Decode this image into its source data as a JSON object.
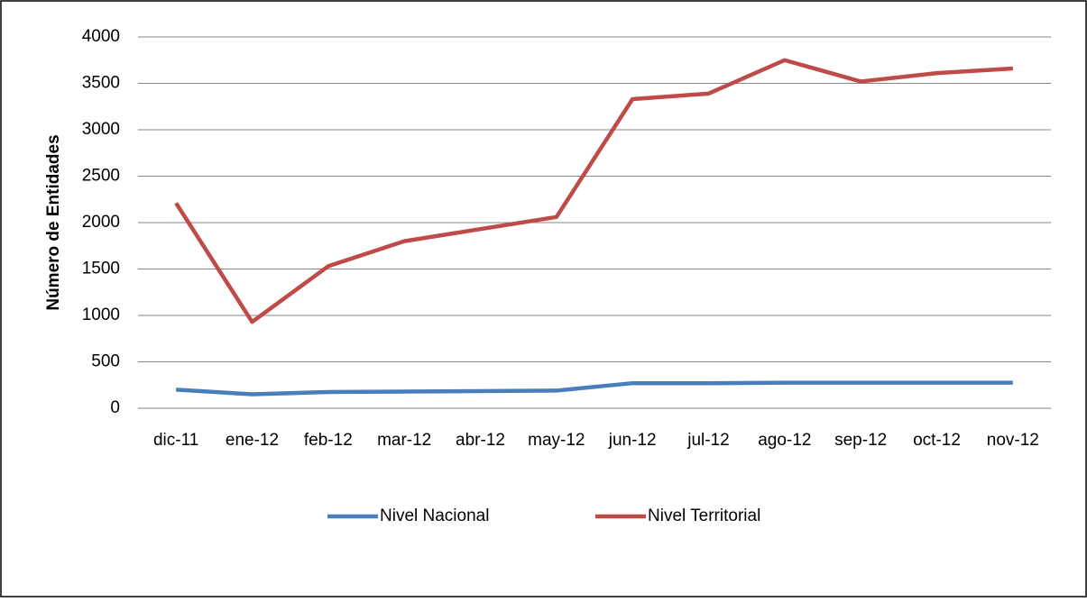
{
  "chart_data": {
    "type": "line",
    "y_label": "Número de Entidades",
    "categories": [
      "dic-11",
      "ene-12",
      "feb-12",
      "mar-12",
      "abr-12",
      "may-12",
      "jun-12",
      "jul-12",
      "ago-12",
      "sep-12",
      "oct-12",
      "nov-12"
    ],
    "series": [
      {
        "name": "Nivel Nacional",
        "color": "#4a7ebb",
        "values": [
          200,
          150,
          175,
          180,
          185,
          190,
          270,
          270,
          275,
          275,
          275,
          275
        ]
      },
      {
        "name": "Nivel Territorial",
        "color": "#be4b48",
        "values": [
          2210,
          930,
          1530,
          1800,
          1930,
          2060,
          3330,
          3390,
          3750,
          3520,
          3610,
          3660
        ]
      }
    ],
    "ylim": [
      0,
      4000
    ],
    "yticks": [
      0,
      500,
      1000,
      1500,
      2000,
      2500,
      3000,
      3500,
      4000
    ],
    "grid": true,
    "legend": "bottom"
  }
}
